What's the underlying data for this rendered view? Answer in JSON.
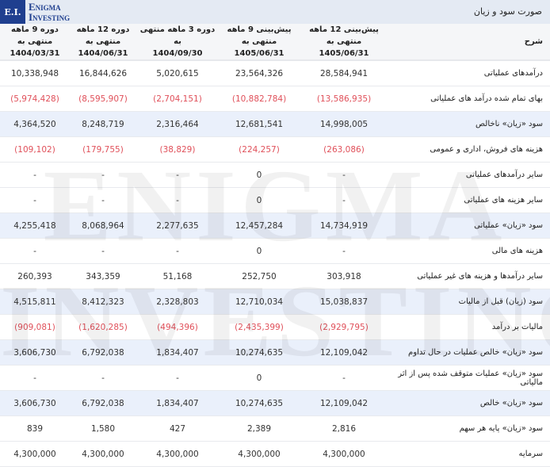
{
  "logo": {
    "mark": "E.I.",
    "line1": "Enigma",
    "line2": "Investing"
  },
  "watermark": {
    "line1": "ENIGMA",
    "line2": "INVESTING"
  },
  "title": "صورت سود و زیان",
  "colors": {
    "negative": "#e0505a",
    "highlight_row": "#eaf0fb",
    "brand": "#1f3f8f"
  },
  "columns": [
    {
      "label": "شرح",
      "date": ""
    },
    {
      "label": "پیش‌بینی 12 ماهه منتهی به",
      "date": "1405/06/31"
    },
    {
      "label": "پیش‌بینی 9 ماهه منتهی به",
      "date": "1405/06/31"
    },
    {
      "label": "دوره 3 ماهه منتهی به",
      "date": "1404/09/30"
    },
    {
      "label": "دوره 12 ماهه منتهی به",
      "date": "1404/06/31"
    },
    {
      "label": "دوره 9 ماهه منتهی به",
      "date": "1404/03/31"
    }
  ],
  "rows": [
    {
      "label": "درآمدهای عملیاتی",
      "highlight": false,
      "values": [
        "28,584,941",
        "23,564,326",
        "5,020,615",
        "16,844,626",
        "10,338,948"
      ]
    },
    {
      "label": "بهای تمام شده درآمد های عملیاتی",
      "highlight": false,
      "values": [
        "(13,586,935)",
        "(10,882,784)",
        "(2,704,151)",
        "(8,595,907)",
        "(5,974,428)"
      ]
    },
    {
      "label": "سود «زیان» ناخالص",
      "highlight": true,
      "values": [
        "14,998,005",
        "12,681,541",
        "2,316,464",
        "8,248,719",
        "4,364,520"
      ]
    },
    {
      "label": "هزینه های فروش، اداری و عمومی",
      "highlight": false,
      "values": [
        "(263,086)",
        "(224,257)",
        "(38,829)",
        "(179,755)",
        "(109,102)"
      ]
    },
    {
      "label": "سایر درآمدهای عملیاتی",
      "highlight": false,
      "values": [
        "-",
        "0",
        "-",
        "-",
        "-"
      ]
    },
    {
      "label": "سایر هزینه های عملیاتی",
      "highlight": false,
      "values": [
        "-",
        "0",
        "-",
        "-",
        "-"
      ]
    },
    {
      "label": "سود «زیان» عملیاتی",
      "highlight": true,
      "values": [
        "14,734,919",
        "12,457,284",
        "2,277,635",
        "8,068,964",
        "4,255,418"
      ]
    },
    {
      "label": "هزینه های مالی",
      "highlight": false,
      "values": [
        "-",
        "0",
        "-",
        "-",
        "-"
      ]
    },
    {
      "label": "سایر درآمدها و هزینه های غیر عملیاتی",
      "highlight": false,
      "values": [
        "303,918",
        "252,750",
        "51,168",
        "343,359",
        "260,393"
      ]
    },
    {
      "label": "سود (زیان) قبل از مالیات",
      "highlight": true,
      "values": [
        "15,038,837",
        "12,710,034",
        "2,328,803",
        "8,412,323",
        "4,515,811"
      ]
    },
    {
      "label": "مالیات بر درآمد",
      "highlight": false,
      "values": [
        "(2,929,795)",
        "(2,435,399)",
        "(494,396)",
        "(1,620,285)",
        "(909,081)"
      ]
    },
    {
      "label": "سود «زیان» خالص عملیات در حال تداوم",
      "highlight": true,
      "values": [
        "12,109,042",
        "10,274,635",
        "1,834,407",
        "6,792,038",
        "3,606,730"
      ]
    },
    {
      "label": "سود «زیان» عملیات متوقف شده پس از اثر مالیاتی",
      "highlight": false,
      "values": [
        "-",
        "0",
        "-",
        "-",
        "-"
      ]
    },
    {
      "label": "سود «زیان» خالص",
      "highlight": true,
      "values": [
        "12,109,042",
        "10,274,635",
        "1,834,407",
        "6,792,038",
        "3,606,730"
      ]
    },
    {
      "label": "سود «زیان» پایه هر سهم",
      "highlight": false,
      "values": [
        "2,816",
        "2,389",
        "427",
        "1,580",
        "839"
      ]
    },
    {
      "label": "سرمایه",
      "highlight": false,
      "values": [
        "4,300,000",
        "4,300,000",
        "4,300,000",
        "4,300,000",
        "4,300,000"
      ]
    }
  ]
}
